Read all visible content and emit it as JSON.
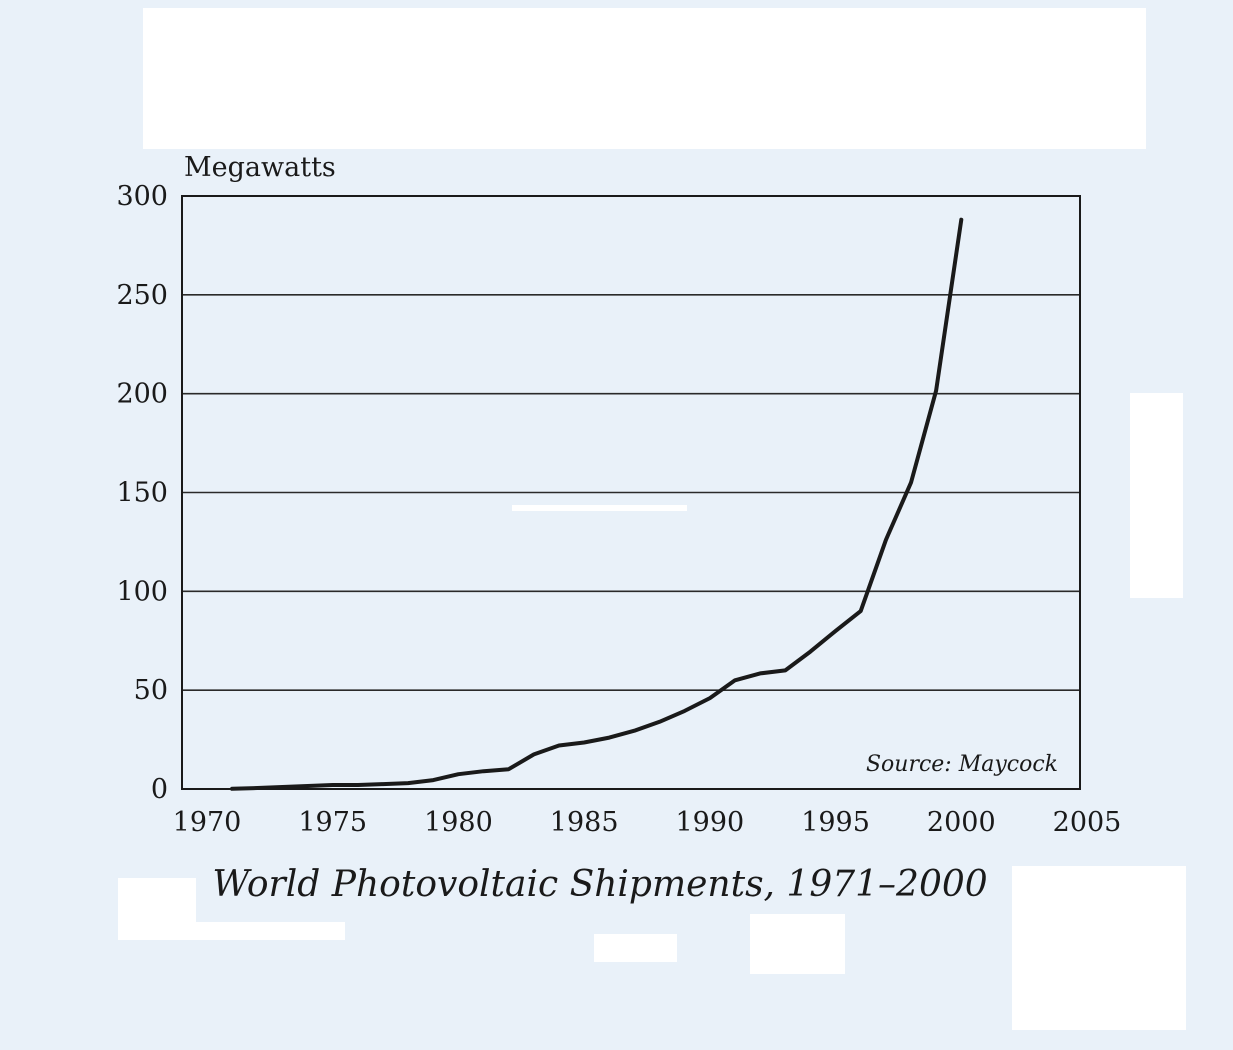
{
  "chart_data": {
    "type": "line",
    "title": "World Photovoltaic Shipments, 1971–2000",
    "ylabel": "Megawatts",
    "xlabel": "",
    "xlim": [
      1970,
      2005
    ],
    "ylim": [
      0,
      300
    ],
    "xticks": [
      "1970",
      "1975",
      "1980",
      "1985",
      "1990",
      "1995",
      "2000",
      "2005"
    ],
    "yticks": [
      "0",
      "50",
      "100",
      "150",
      "200",
      "250",
      "300"
    ],
    "grid": "horizontal",
    "annotation": "Source: Maycock",
    "series": [
      {
        "x": [
          1971,
          1972,
          1973,
          1974,
          1975,
          1976,
          1977,
          1978,
          1979,
          1980,
          1981,
          1982,
          1983,
          1984,
          1985,
          1986,
          1987,
          1988,
          1989,
          1990,
          1991,
          1992,
          1993,
          1994,
          1995,
          1996,
          1997,
          1998,
          1999,
          2000
        ],
        "values": [
          0.1,
          0.5,
          1,
          1.5,
          2,
          2,
          2.5,
          3,
          4.5,
          7.5,
          9,
          10,
          17.5,
          22,
          23.5,
          26,
          29.5,
          34,
          39.5,
          46,
          55,
          58.5,
          60,
          69.5,
          80,
          90,
          126,
          155,
          201.5,
          288
        ]
      }
    ]
  }
}
